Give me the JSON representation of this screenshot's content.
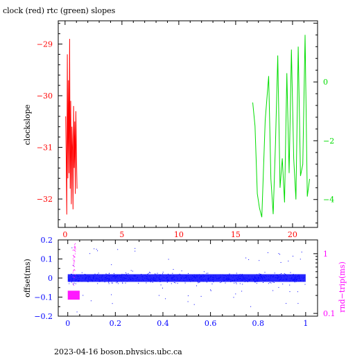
{
  "title": "clock (red) rtc (green) slopes",
  "footer": "2023-04-16  boson.physics.ubc.ca",
  "colors": {
    "clock": "#ff0000",
    "rtc": "#00dd00",
    "offset": "#0000ff",
    "roundtrip": "#ff00ff",
    "axis": "#000000"
  },
  "chart_data": [
    {
      "type": "line",
      "ylabel": "clockslope",
      "xlim": [
        -0.6,
        22.2
      ],
      "ylim": [
        -32.55,
        -28.55
      ],
      "x_ticks": [
        0,
        5,
        10,
        15,
        20
      ],
      "y_ticks": [
        -32,
        -31,
        -30,
        -29
      ],
      "y2lim": [
        -4.95,
        2.08
      ],
      "y2_ticks": [
        -4,
        -2,
        0
      ],
      "series": [
        {
          "axis": "left",
          "color": "clock",
          "x": [
            0.05,
            0.1,
            0.15,
            0.2,
            0.25,
            0.3,
            0.35,
            0.4,
            0.45,
            0.5,
            0.55,
            0.6,
            0.65,
            0.7,
            0.75,
            0.8,
            0.85,
            0.9,
            0.95,
            1.0,
            1.05
          ],
          "y": [
            -30.4,
            -31.2,
            -32.3,
            -29.2,
            -31.6,
            -29.7,
            -31.5,
            -28.9,
            -31.8,
            -30.1,
            -32.1,
            -30.6,
            -31.0,
            -32.2,
            -30.2,
            -31.4,
            -30.5,
            -31.9,
            -30.3,
            -31.1,
            -31.8
          ]
        },
        {
          "axis": "right",
          "color": "rtc",
          "x": [
            16.5,
            16.7,
            16.9,
            17.1,
            17.3,
            17.6,
            17.9,
            18.1,
            18.3,
            18.5,
            18.7,
            18.9,
            19.1,
            19.3,
            19.5,
            19.7,
            19.9,
            20.1,
            20.3,
            20.5,
            20.7,
            20.9,
            21.1,
            21.3,
            21.5
          ],
          "y": [
            -0.7,
            -1.5,
            -3.8,
            -4.3,
            -4.6,
            -1.3,
            0.2,
            -3.3,
            -4.5,
            -2.1,
            0.9,
            -3.6,
            -2.6,
            -4.1,
            0.3,
            -3.1,
            1.1,
            -2.6,
            -4.0,
            1.2,
            -3.2,
            -2.8,
            1.6,
            -3.9,
            -3.3
          ]
        }
      ]
    },
    {
      "type": "scatter",
      "ylabel": "offset(ms)",
      "y2label": "rnd−trip(ms)",
      "xlim": [
        -0.04,
        1.05
      ],
      "ylim": [
        -0.2,
        0.2
      ],
      "x_ticks": [
        0,
        0.2,
        0.4,
        0.6,
        0.8,
        1
      ],
      "y_ticks": [
        -0.2,
        -0.1,
        0,
        0.1,
        0.2
      ],
      "y2_scale": "log",
      "y2lim": [
        0.09,
        1.7
      ],
      "y2_ticks": [
        0.1,
        1
      ],
      "offset_band": {
        "center": 0.0,
        "halfwidth": 0.02
      },
      "roundtrip_cluster": {
        "x_range": [
          0.0,
          0.05
        ],
        "y_range": [
          0.17,
          0.24
        ]
      }
    }
  ]
}
